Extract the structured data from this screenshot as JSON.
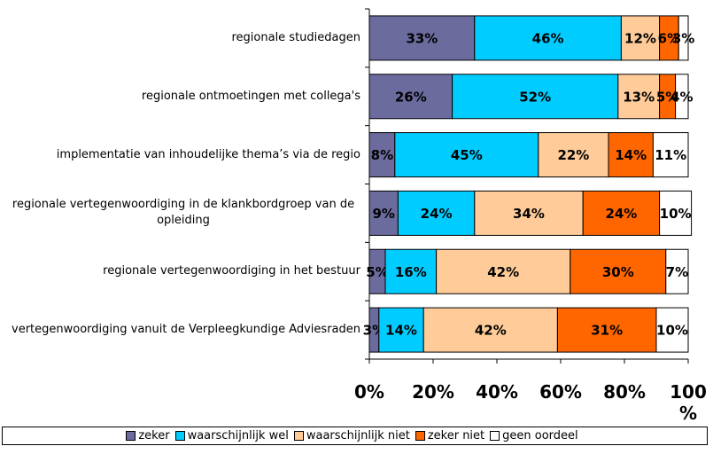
{
  "chart_data": {
    "type": "stacked-bar-horizontal",
    "categories": [
      "regionale studiedagen",
      "regionale ontmoetingen met collega's",
      "implementatie van inhoudelijke thema’s via de regio",
      "regionale vertegenwoordiging in de klankbordgroep van de opleiding",
      "regionale vertegenwoordiging in het bestuur",
      "vertegenwoordiging vanuit de Verpleegkundige Adviesraden"
    ],
    "series": [
      {
        "name": "zeker",
        "color": "#6b6b9e",
        "values": [
          33,
          26,
          8,
          9,
          5,
          3
        ],
        "value_labels": [
          "33%",
          "26%",
          "8%",
          "9%",
          "5%",
          "3%"
        ]
      },
      {
        "name": "waarschijnlijk wel",
        "color": "#00ccff",
        "values": [
          46,
          52,
          45,
          24,
          16,
          14
        ],
        "value_labels": [
          "46%",
          "52%",
          "45%",
          "24%",
          "16%",
          "14%"
        ]
      },
      {
        "name": "waarschijnlijk niet",
        "color": "#ffcc99",
        "values": [
          12,
          13,
          22,
          34,
          42,
          42
        ],
        "value_labels": [
          "12%",
          "13%",
          "22%",
          "34%",
          "42%",
          "42%"
        ]
      },
      {
        "name": "zeker niet",
        "color": "#ff6600",
        "values": [
          6,
          5,
          14,
          24,
          30,
          31
        ],
        "value_labels": [
          "6%",
          "5%",
          "14%",
          "24%",
          "30%",
          "31%"
        ]
      },
      {
        "name": "geen oordeel",
        "color": "#ffffff",
        "values": [
          3,
          4,
          11,
          10,
          7,
          10
        ],
        "value_labels": [
          "3%",
          "4%",
          "11%",
          "10%",
          "7%",
          "10%"
        ]
      }
    ],
    "xlim": [
      0,
      100
    ],
    "xticks": [
      {
        "value": 0,
        "label": "0%"
      },
      {
        "value": 20,
        "label": "20%"
      },
      {
        "value": 40,
        "label": "40%"
      },
      {
        "value": 60,
        "label": "60%"
      },
      {
        "value": 80,
        "label": "80%"
      },
      {
        "value": 100,
        "label": "100 %"
      }
    ],
    "legend": "bottom"
  }
}
